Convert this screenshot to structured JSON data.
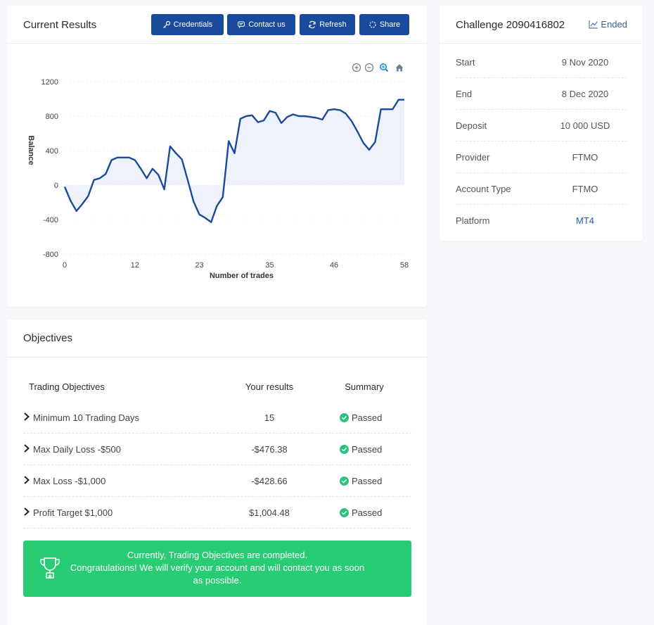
{
  "results": {
    "title": "Current Results",
    "buttons": {
      "credentials": "Credentials",
      "contact": "Contact us",
      "refresh": "Refresh",
      "share": "Share"
    },
    "accent_color": "#1a4a9c"
  },
  "chart_data": {
    "type": "area",
    "xlabel": "Number of trades",
    "ylabel": "Balance",
    "xlim": [
      0,
      58
    ],
    "ylim": [
      -800,
      1200
    ],
    "x_ticks": [
      0,
      12,
      23,
      35,
      46,
      58
    ],
    "y_ticks": [
      1200,
      800,
      400,
      0,
      -400,
      -800
    ],
    "line_color": "#1a4a9c",
    "fill_color": "#eef2fa",
    "grid": true,
    "series": [
      {
        "x": [
          0,
          1,
          2,
          3,
          4,
          5,
          6,
          7,
          8,
          9,
          10,
          11,
          12,
          13,
          14,
          15,
          16,
          17,
          18,
          19,
          20,
          21,
          22,
          23,
          24,
          25,
          26,
          27,
          28,
          29,
          30,
          31,
          32,
          33,
          34,
          35,
          36,
          37,
          38,
          39,
          40,
          41,
          42,
          43,
          44,
          45,
          46,
          47,
          48,
          49,
          50,
          51,
          52,
          53,
          54,
          55,
          56,
          57,
          58
        ],
        "y": [
          -20,
          -180,
          -300,
          -220,
          -130,
          60,
          80,
          130,
          290,
          320,
          320,
          320,
          290,
          190,
          80,
          190,
          120,
          -50,
          450,
          370,
          300,
          60,
          -190,
          -340,
          -380,
          -430,
          -240,
          -140,
          510,
          370,
          770,
          800,
          810,
          730,
          750,
          860,
          840,
          720,
          790,
          820,
          800,
          800,
          790,
          780,
          760,
          870,
          880,
          870,
          830,
          740,
          620,
          490,
          410,
          500,
          880,
          880,
          880,
          990,
          990
        ]
      }
    ]
  },
  "challenge": {
    "title": "Challenge 2090416802",
    "status": "Ended",
    "rows": [
      {
        "label": "Start",
        "value": "9 Nov 2020"
      },
      {
        "label": "End",
        "value": "8 Dec 2020"
      },
      {
        "label": "Deposit",
        "value": "10 000 USD"
      },
      {
        "label": "Provider",
        "value": "FTMO"
      },
      {
        "label": "Account Type",
        "value": "FTMO"
      },
      {
        "label": "Platform",
        "value": "MT4"
      }
    ]
  },
  "objectives": {
    "title": "Objectives",
    "headers": {
      "objective": "Trading Objectives",
      "results": "Your results",
      "summary": "Summary"
    },
    "rows": [
      {
        "name": "Minimum 10 Trading Days",
        "result": "15",
        "summary": "Passed"
      },
      {
        "name": "Max Daily Loss -$500",
        "result": "-$476.38",
        "summary": "Passed"
      },
      {
        "name": "Max Loss -$1,000",
        "result": "-$428.66",
        "summary": "Passed"
      },
      {
        "name": "Profit Target $1,000",
        "result": "$1,004.48",
        "summary": "Passed"
      }
    ],
    "success_message": {
      "line1": "Currently, Trading Objectives are completed.",
      "line2": "Congratulations! We will verify your account and will contact you as soon as possible."
    },
    "success_color": "#28cc74"
  }
}
